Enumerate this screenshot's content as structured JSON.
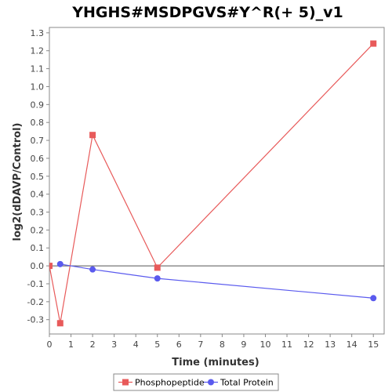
{
  "chart_data": {
    "type": "line",
    "title": "YHGHS#MSDPGVS#Y^R(+ 5)_v1",
    "xlabel": "Time (minutes)",
    "ylabel": "log2(dDAVP/Control)",
    "xlim": [
      0,
      15.5
    ],
    "ylim": [
      -0.38,
      1.33
    ],
    "xticks": [
      0,
      1,
      2,
      3,
      4,
      5,
      6,
      7,
      8,
      9,
      10,
      11,
      12,
      13,
      14,
      15
    ],
    "yticks": [
      -0.3,
      -0.2,
      -0.1,
      0.0,
      0.1,
      0.2,
      0.3,
      0.4,
      0.5,
      0.6,
      0.7,
      0.8,
      0.9,
      1.0,
      1.1,
      1.2,
      1.3
    ],
    "ytick_labels": [
      "-0.3",
      "-0.2",
      "-0.1",
      "0.0",
      "0.1",
      "0.2",
      "0.3",
      "0.4",
      "0.5",
      "0.6",
      "0.7",
      "0.8",
      "0.9",
      "1.0",
      "1.1",
      "1.2",
      "1.3"
    ],
    "baseline": 0,
    "grid": false,
    "legend_position": "bottom",
    "series": [
      {
        "name": "Phosphopeptide",
        "color": "#e85a5a",
        "marker": "square",
        "x": [
          0,
          0.5,
          2,
          5,
          15
        ],
        "y": [
          0.0,
          -0.32,
          0.73,
          -0.01,
          1.24
        ]
      },
      {
        "name": "Total Protein",
        "color": "#5a5aee",
        "marker": "circle",
        "x": [
          0.5,
          2,
          5,
          15
        ],
        "y": [
          0.01,
          -0.02,
          -0.07,
          -0.18
        ]
      }
    ]
  }
}
